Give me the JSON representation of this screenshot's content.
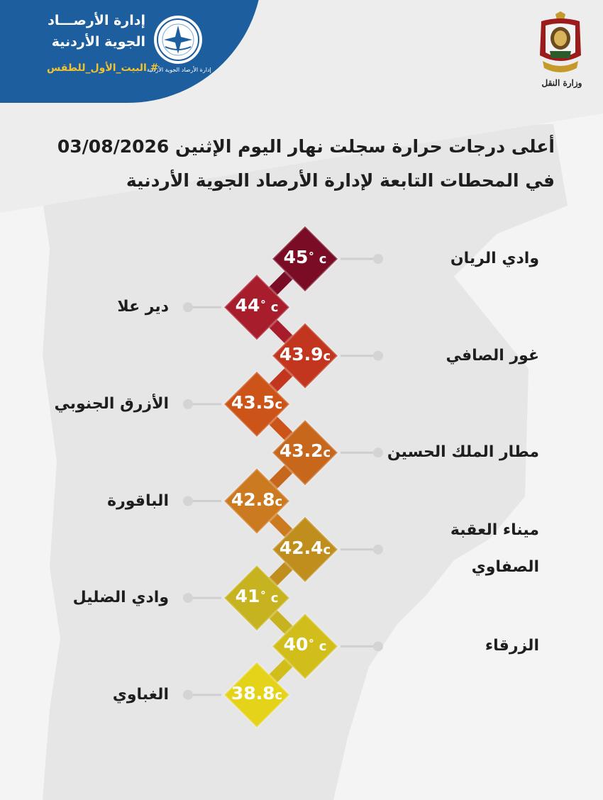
{
  "banner": {
    "title_line1": "إدارة الأرصـــاد",
    "title_line2": "الجوية الأردنية",
    "hashtag": "# البيت_الأول_للطقس",
    "emblem_caption": "إدارة الأرصاد الجوية الأردنية",
    "emblem_icon": "meteorological-department-emblem-icon"
  },
  "ministry": {
    "caption": "وزارة النقل",
    "icon": "jordan-coat-of-arms-icon"
  },
  "title": {
    "line1": "أعلى درجات حرارة سجلت نهار اليوم الإثنين 03/08/2026",
    "line2": "في المحطات التابعة لإدارة الأرصاد الجوية الأردنية"
  },
  "colors": {
    "banner": "#1d5e9f",
    "hashtag": "#f2c230",
    "gradient": [
      "#7a0c25",
      "#a81d2b",
      "#c2361f",
      "#cc5419",
      "#c7671c",
      "#cc7a20",
      "#bf8e1c",
      "#c7b21f",
      "#d2be1a",
      "#e5d31a"
    ]
  },
  "chart_data": {
    "type": "table",
    "unit": "c",
    "stations": [
      {
        "name": "وادي الريان",
        "value": "45",
        "degree": "˚",
        "side": "right"
      },
      {
        "name": "دير علا",
        "value": "44",
        "degree": "˚",
        "side": "left"
      },
      {
        "name": "غور الصافي",
        "value": "43.9",
        "degree": "",
        "side": "right"
      },
      {
        "name": "الأزرق الجنوبي",
        "value": "43.5",
        "degree": "",
        "side": "left"
      },
      {
        "name": "مطار الملك الحسين",
        "value": "43.2",
        "degree": "",
        "side": "right"
      },
      {
        "name": "الباقورة",
        "value": "42.8",
        "degree": "",
        "side": "left"
      },
      {
        "name": "ميناء العقبة",
        "name2": "الصفاوي",
        "value": "42.4",
        "degree": "",
        "side": "right"
      },
      {
        "name": "وادي الضليل",
        "value": "41",
        "degree": "˚",
        "side": "left"
      },
      {
        "name": "الزرقاء",
        "value": "40",
        "degree": "˚",
        "side": "right"
      },
      {
        "name": "الغباوي",
        "value": "38.8",
        "degree": "",
        "side": "left"
      }
    ]
  }
}
